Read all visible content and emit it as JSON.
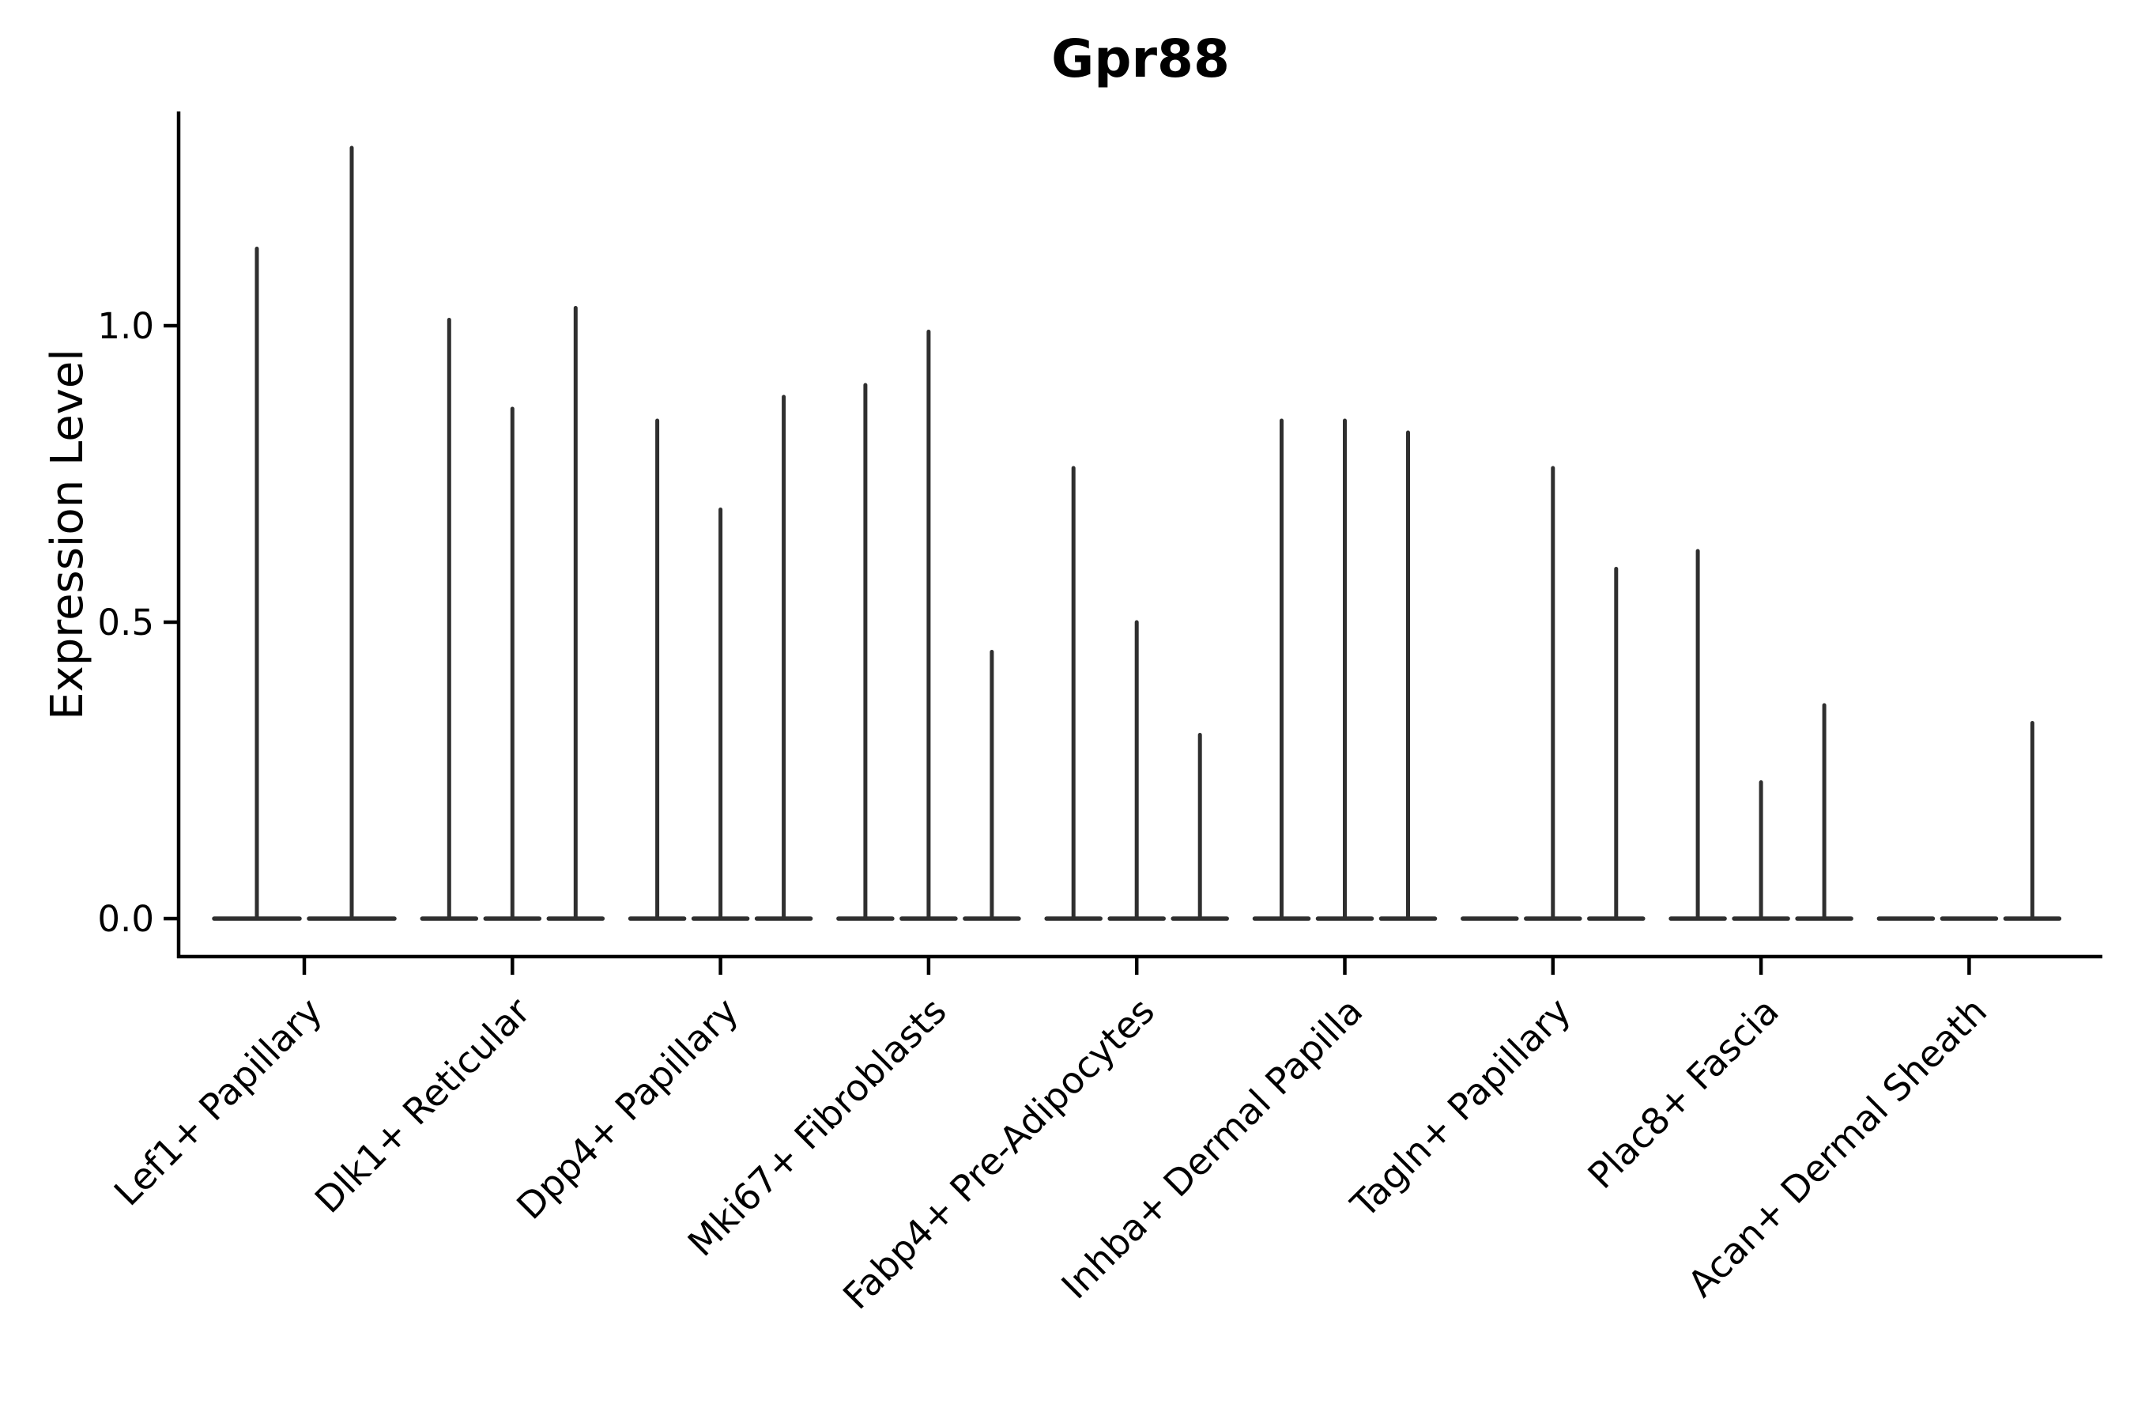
{
  "chart_data": {
    "type": "violin",
    "title": "Gpr88",
    "ylabel": "Expression Level",
    "xlabel": "",
    "ytick_labels": [
      "0.0",
      "0.5",
      "1.0"
    ],
    "ytick_values": [
      0.0,
      0.5,
      1.0
    ],
    "ylim": [
      -0.064,
      1.36
    ],
    "grid": false,
    "legend": "none",
    "x_tick_rotation_deg": 45,
    "violin_min_value": 0.0,
    "colors": {
      "violin": "#2f2f2f",
      "axis": "#000000",
      "text": "#000000",
      "background": "#ffffff"
    },
    "groups": [
      {
        "label": "Lef1+ Papillary",
        "violin_maxima": [
          1.13,
          1.3
        ]
      },
      {
        "label": "Dlk1+ Reticular",
        "violin_maxima": [
          1.01,
          0.86,
          1.03
        ]
      },
      {
        "label": "Dpp4+ Papillary",
        "violin_maxima": [
          0.84,
          0.69,
          0.88
        ]
      },
      {
        "label": "Mki67+ Fibroblasts",
        "violin_maxima": [
          0.9,
          0.99,
          0.45
        ]
      },
      {
        "label": "Fabp4+ Pre-Adipocytes",
        "violin_maxima": [
          0.76,
          0.5,
          0.31
        ]
      },
      {
        "label": "Inhba+ Dermal Papilla",
        "violin_maxima": [
          0.84,
          0.84,
          0.82
        ]
      },
      {
        "label": "Tagln+ Papillary",
        "violin_maxima": [
          0.0,
          0.76,
          0.59
        ]
      },
      {
        "label": "Plac8+ Fascia",
        "violin_maxima": [
          0.62,
          0.23,
          0.36
        ]
      },
      {
        "label": "Acan+ Dermal Sheath",
        "violin_maxima": [
          0.0,
          0.0,
          0.33
        ]
      }
    ]
  }
}
